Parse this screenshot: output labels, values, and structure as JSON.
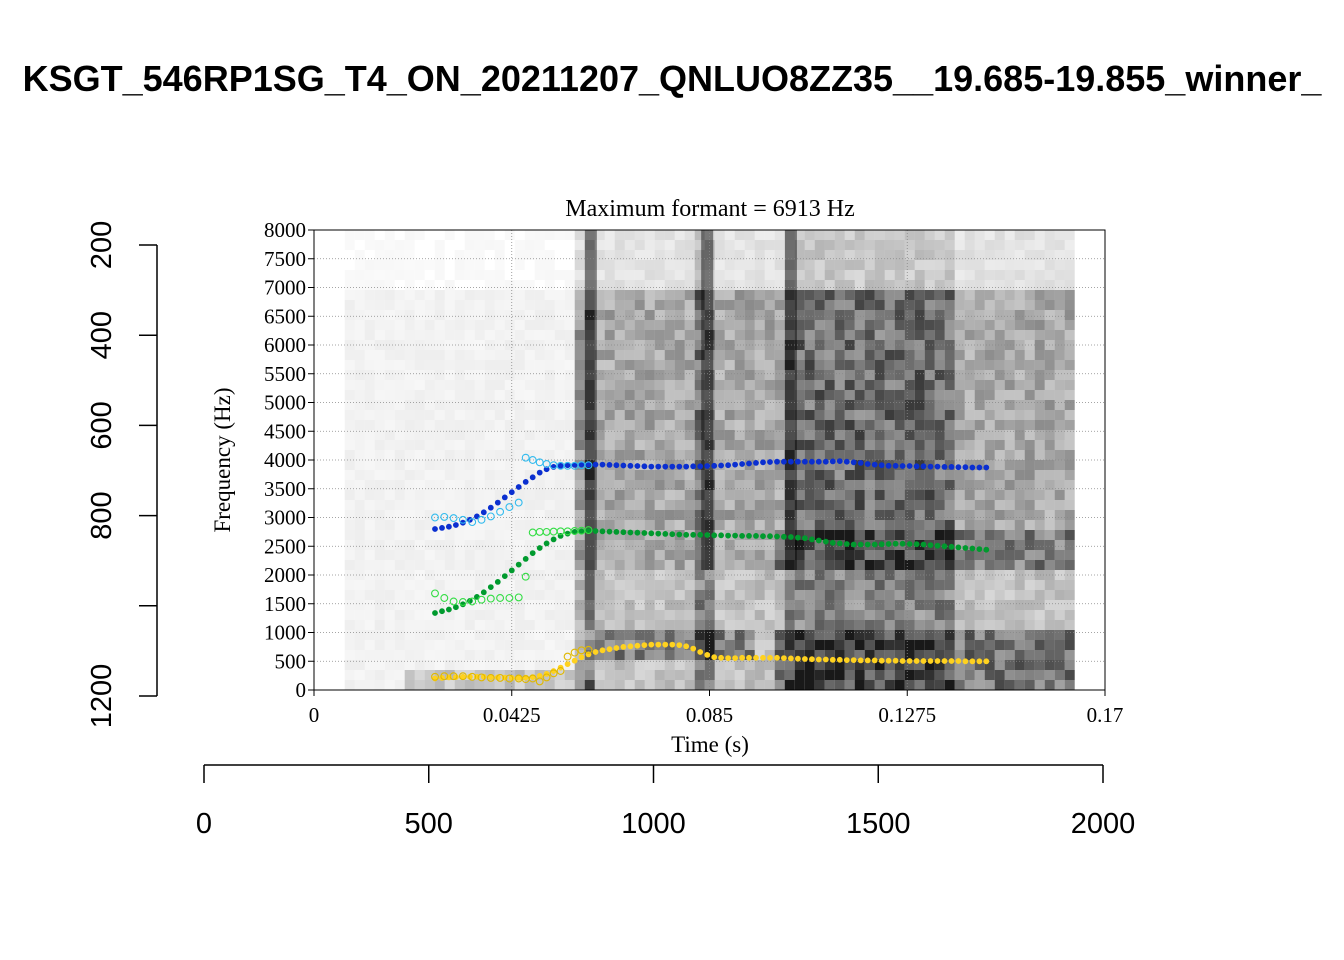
{
  "page_title": "KSGT_546RP1SG_T4_ON_20211207_QNLUO8ZZ35__19.685-19.855_winner_",
  "chart_data": {
    "type": "scatter",
    "title": "Maximum formant = 6913 Hz",
    "xlabel": "Time (s)",
    "ylabel": "Frequency (Hz)",
    "xlim": [
      0,
      0.17
    ],
    "ylim": [
      0,
      8000
    ],
    "x_ticks": [
      "0",
      "0.0425",
      "0.085",
      "0.1275",
      "0.17"
    ],
    "y_ticks": [
      "0",
      "500",
      "1000",
      "1500",
      "2000",
      "2500",
      "3000",
      "3500",
      "4000",
      "4500",
      "5000",
      "5500",
      "6000",
      "6500",
      "7000",
      "7500",
      "8000"
    ],
    "grid": true,
    "spectrogram_extent_s": [
      0.0066,
      0.163
    ],
    "colors": {
      "F1": "#FFD21F",
      "F2": "#009A2E",
      "F3": "#0B2FD0",
      "F1_raw": "#E0B800",
      "F2_raw": "#33DD44",
      "F3_raw": "#33BBEE"
    },
    "series": [
      {
        "marker": "filled",
        "x": [
          0.026,
          0.0275,
          0.029,
          0.0305,
          0.032,
          0.0335,
          0.035,
          0.0365,
          0.038,
          0.0395,
          0.041,
          0.0425,
          0.044,
          0.0455,
          0.047,
          0.0485,
          0.05,
          0.0515,
          0.053,
          0.0545,
          0.056,
          0.0575,
          0.059,
          0.0605,
          0.062,
          0.0635,
          0.065,
          0.0665,
          0.068,
          0.0695,
          0.071,
          0.0725,
          0.074,
          0.0755,
          0.077,
          0.0785,
          0.08,
          0.0815,
          0.083,
          0.0845,
          0.086,
          0.0875,
          0.089,
          0.0905,
          0.092,
          0.0935,
          0.095,
          0.0965,
          0.098,
          0.0995,
          0.101,
          0.1025,
          0.104,
          0.1055,
          0.107,
          0.1085,
          0.11,
          0.1115,
          0.113,
          0.1145,
          0.116,
          0.1175,
          0.119,
          0.1205,
          0.122,
          0.1235,
          0.125,
          0.1265,
          0.128,
          0.1295,
          0.131,
          0.1325,
          0.134,
          0.1355,
          0.137,
          0.1385,
          0.14,
          0.1415,
          0.143,
          0.1445
        ],
        "y": [
          2800,
          2820,
          2840,
          2870,
          2910,
          2960,
          3020,
          3090,
          3170,
          3260,
          3350,
          3440,
          3530,
          3620,
          3700,
          3780,
          3840,
          3880,
          3900,
          3910,
          3915,
          3920,
          3920,
          3920,
          3920,
          3915,
          3910,
          3905,
          3900,
          3895,
          3890,
          3885,
          3885,
          3885,
          3885,
          3885,
          3885,
          3890,
          3890,
          3895,
          3900,
          3905,
          3910,
          3920,
          3930,
          3940,
          3950,
          3960,
          3965,
          3970,
          3970,
          3970,
          3970,
          3970,
          3970,
          3970,
          3970,
          3975,
          3980,
          3970,
          3960,
          3950,
          3930,
          3920,
          3910,
          3900,
          3900,
          3895,
          3895,
          3890,
          3890,
          3885,
          3885,
          3880,
          3880,
          3875,
          3875,
          3870,
          3870,
          3870
        ]
      },
      {
        "marker": "filled",
        "x": [
          0.026,
          0.0275,
          0.029,
          0.0305,
          0.032,
          0.0335,
          0.035,
          0.0365,
          0.038,
          0.0395,
          0.041,
          0.0425,
          0.044,
          0.0455,
          0.047,
          0.0485,
          0.05,
          0.0515,
          0.053,
          0.0545,
          0.056,
          0.0575,
          0.059,
          0.0605,
          0.062,
          0.0635,
          0.065,
          0.0665,
          0.068,
          0.0695,
          0.071,
          0.0725,
          0.074,
          0.0755,
          0.077,
          0.0785,
          0.08,
          0.0815,
          0.083,
          0.0845,
          0.086,
          0.0875,
          0.089,
          0.0905,
          0.092,
          0.0935,
          0.095,
          0.0965,
          0.098,
          0.0995,
          0.101,
          0.1025,
          0.104,
          0.1055,
          0.107,
          0.1085,
          0.11,
          0.1115,
          0.113,
          0.1145,
          0.116,
          0.1175,
          0.119,
          0.1205,
          0.122,
          0.1235,
          0.125,
          0.1265,
          0.128,
          0.1295,
          0.131,
          0.1325,
          0.134,
          0.1355,
          0.137,
          0.1385,
          0.14,
          0.1415,
          0.143,
          0.1445
        ],
        "y": [
          1340,
          1370,
          1400,
          1440,
          1490,
          1550,
          1620,
          1700,
          1790,
          1880,
          1980,
          2080,
          2180,
          2280,
          2380,
          2470,
          2550,
          2620,
          2680,
          2720,
          2750,
          2760,
          2765,
          2765,
          2760,
          2755,
          2750,
          2745,
          2740,
          2735,
          2730,
          2725,
          2720,
          2715,
          2710,
          2705,
          2700,
          2700,
          2700,
          2695,
          2690,
          2690,
          2685,
          2685,
          2680,
          2680,
          2680,
          2675,
          2675,
          2670,
          2665,
          2660,
          2650,
          2640,
          2620,
          2600,
          2580,
          2560,
          2550,
          2540,
          2530,
          2530,
          2530,
          2530,
          2535,
          2540,
          2545,
          2545,
          2540,
          2535,
          2530,
          2520,
          2510,
          2500,
          2490,
          2480,
          2470,
          2460,
          2450,
          2440
        ]
      },
      {
        "marker": "filled",
        "x": [
          0.026,
          0.0275,
          0.029,
          0.0305,
          0.032,
          0.0335,
          0.035,
          0.0365,
          0.038,
          0.0395,
          0.041,
          0.0425,
          0.044,
          0.0455,
          0.047,
          0.0485,
          0.05,
          0.0515,
          0.053,
          0.0545,
          0.056,
          0.0575,
          0.059,
          0.0605,
          0.062,
          0.0635,
          0.065,
          0.0665,
          0.068,
          0.0695,
          0.071,
          0.0725,
          0.074,
          0.0755,
          0.077,
          0.0785,
          0.08,
          0.0815,
          0.083,
          0.0845,
          0.086,
          0.0875,
          0.089,
          0.0905,
          0.092,
          0.0935,
          0.095,
          0.0965,
          0.098,
          0.0995,
          0.101,
          0.1025,
          0.104,
          0.1055,
          0.107,
          0.1085,
          0.11,
          0.1115,
          0.113,
          0.1145,
          0.116,
          0.1175,
          0.119,
          0.1205,
          0.122,
          0.1235,
          0.125,
          0.1265,
          0.128,
          0.1295,
          0.131,
          0.1325,
          0.134,
          0.1355,
          0.137,
          0.1385,
          0.14,
          0.1415,
          0.143,
          0.1445
        ],
        "y": [
          200,
          210,
          220,
          225,
          230,
          230,
          230,
          230,
          225,
          220,
          215,
          210,
          210,
          215,
          225,
          245,
          280,
          330,
          390,
          450,
          510,
          570,
          620,
          660,
          690,
          710,
          730,
          750,
          760,
          770,
          780,
          790,
          790,
          790,
          790,
          780,
          760,
          720,
          660,
          610,
          570,
          560,
          555,
          555,
          560,
          560,
          560,
          560,
          560,
          560,
          555,
          550,
          545,
          540,
          535,
          530,
          530,
          525,
          525,
          520,
          520,
          515,
          515,
          515,
          510,
          510,
          510,
          505,
          505,
          505,
          505,
          505,
          505,
          505,
          505,
          505,
          500,
          500,
          500,
          500
        ]
      },
      {
        "marker": "open",
        "x": [
          0.026,
          0.028,
          0.03,
          0.032,
          0.034,
          0.036,
          0.038,
          0.04,
          0.042,
          0.044,
          0.0455,
          0.047,
          0.0485,
          0.05,
          0.0515,
          0.053,
          0.0545,
          0.056,
          0.0575,
          0.059
        ],
        "y": [
          3000,
          3010,
          2990,
          2960,
          2920,
          2960,
          3020,
          3100,
          3180,
          3260,
          4040,
          4000,
          3960,
          3930,
          3910,
          3900,
          3900,
          3900,
          3910,
          3910
        ]
      },
      {
        "marker": "open",
        "x": [
          0.026,
          0.028,
          0.03,
          0.032,
          0.034,
          0.036,
          0.038,
          0.04,
          0.042,
          0.044,
          0.0455,
          0.047,
          0.0485,
          0.05,
          0.0515,
          0.053,
          0.0545,
          0.056,
          0.0575,
          0.059
        ],
        "y": [
          1680,
          1600,
          1540,
          1530,
          1540,
          1570,
          1590,
          1600,
          1600,
          1610,
          1970,
          2740,
          2750,
          2750,
          2755,
          2760,
          2760,
          2765,
          2770,
          2780
        ]
      },
      {
        "marker": "open",
        "x": [
          0.026,
          0.028,
          0.03,
          0.032,
          0.034,
          0.036,
          0.038,
          0.04,
          0.042,
          0.044,
          0.0455,
          0.047,
          0.0485,
          0.05,
          0.0515,
          0.053,
          0.0545,
          0.056,
          0.0575,
          0.059
        ],
        "y": [
          230,
          240,
          240,
          240,
          230,
          220,
          210,
          210,
          200,
          200,
          190,
          200,
          150,
          220,
          290,
          330,
          580,
          650,
          690,
          700
        ]
      }
    ]
  },
  "outer_axes": {
    "bottom_ticks": [
      "0",
      "500",
      "1000",
      "1500",
      "2000"
    ],
    "left_ticks": [
      "200",
      "400",
      "600",
      "800",
      "1200"
    ]
  }
}
